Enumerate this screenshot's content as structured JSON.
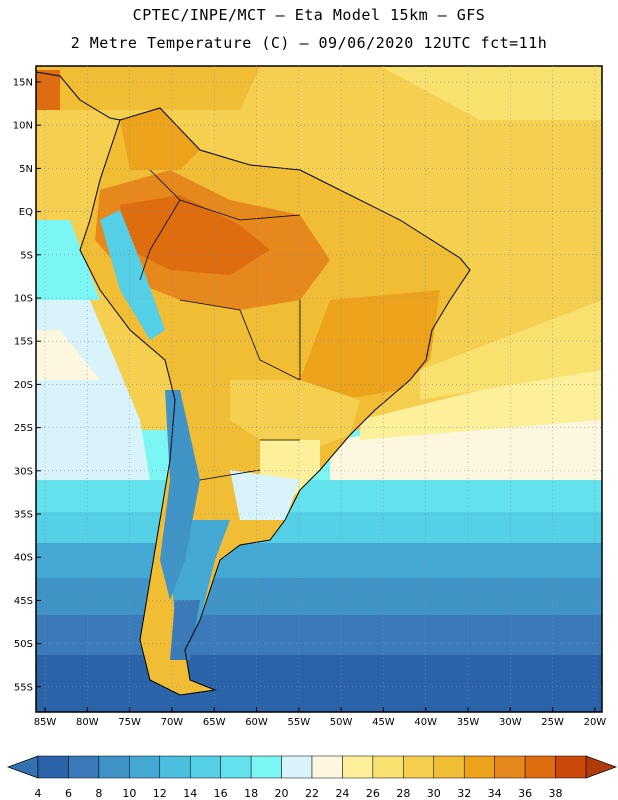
{
  "header": {
    "line1": "CPTEC/INPE/MCT –  Eta Model 15km – GFS",
    "line2": "2 Metre Temperature (C) – 09/06/2020 12UTC fct=11h"
  },
  "map": {
    "lat_labels": [
      "15N",
      "10N",
      "5N",
      "EQ",
      "5S",
      "10S",
      "15S",
      "20S",
      "25S",
      "30S",
      "35S",
      "40S",
      "45S",
      "50S",
      "55S"
    ],
    "lon_labels": [
      "85W",
      "80W",
      "75W",
      "70W",
      "65W",
      "60W",
      "55W",
      "50W",
      "45W",
      "40W",
      "35W",
      "30W",
      "25W",
      "20W"
    ]
  },
  "colorbar": {
    "labels": [
      "4",
      "6",
      "8",
      "10",
      "12",
      "14",
      "16",
      "18",
      "20",
      "22",
      "24",
      "26",
      "28",
      "30",
      "32",
      "34",
      "36",
      "38"
    ],
    "colors": [
      "#2b63a8",
      "#3a7ab8",
      "#3f93c6",
      "#43a8d3",
      "#4bbede",
      "#55cfe6",
      "#63e2ee",
      "#7cf5f5",
      "#d8f4fa",
      "#fdf7e0",
      "#fdf09a",
      "#f8e16e",
      "#f4cf50",
      "#f0bd34",
      "#eda21c",
      "#e6881c",
      "#de6d10",
      "#c9480a"
    ],
    "low_color": "#3570b0",
    "high_color": "#b03a08"
  }
}
